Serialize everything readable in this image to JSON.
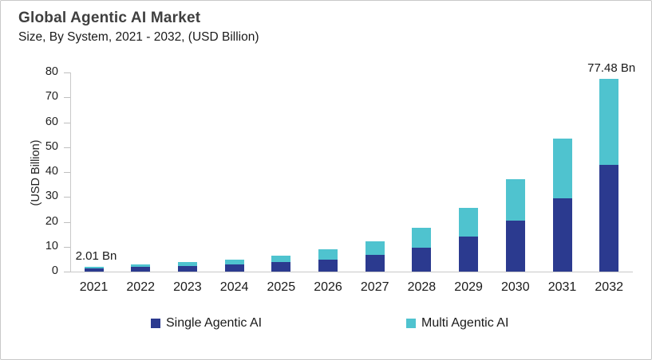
{
  "header": {
    "title": "Global Agentic AI Market",
    "subtitle": "Size, By System, 2021 - 2032, (USD Billion)"
  },
  "chart_data": {
    "type": "bar",
    "stacked": true,
    "title": "Global Agentic AI Market",
    "subtitle": "Size, By System, 2021 - 2032, (USD Billion)",
    "xlabel": "",
    "ylabel": "(USD Billion)",
    "ylim": [
      0,
      80
    ],
    "ytick_step": 10,
    "ytick_labels": [
      "0",
      "10",
      "20",
      "30",
      "40",
      "50",
      "60",
      "70",
      "80"
    ],
    "grid": false,
    "legend_position": "bottom",
    "categories": [
      "2021",
      "2022",
      "2023",
      "2024",
      "2025",
      "2026",
      "2027",
      "2028",
      "2029",
      "2030",
      "2031",
      "2032"
    ],
    "series": [
      {
        "name": "Single Agentic AI",
        "color": "#2B3A8F",
        "values": [
          1.3,
          1.8,
          2.4,
          2.9,
          3.8,
          4.9,
          6.6,
          9.7,
          14.0,
          20.5,
          29.5,
          42.9
        ]
      },
      {
        "name": "Multi Agentic AI",
        "color": "#4FC3CF",
        "values": [
          0.71,
          1.0,
          1.3,
          1.8,
          2.6,
          4.2,
          5.6,
          8.0,
          11.6,
          16.6,
          23.9,
          34.58
        ]
      }
    ],
    "stacked_totals": [
      2.01,
      2.8,
      3.7,
      4.7,
      6.4,
      9.1,
      12.2,
      17.7,
      25.6,
      37.1,
      53.4,
      77.48
    ],
    "annotations": [
      {
        "category": "2021",
        "text": "2.01 Bn"
      },
      {
        "category": "2032",
        "text": "77.48 Bn"
      }
    ]
  },
  "legend": {
    "items": [
      {
        "label": "Single Agentic AI",
        "color": "#2B3A8F"
      },
      {
        "label": "Multi Agentic AI",
        "color": "#4FC3CF"
      }
    ]
  },
  "colors": {
    "single_agentic": "#2B3A8F",
    "multi_agentic": "#4FC3CF",
    "axis": "#C9C9C9",
    "title_text": "#3F3F3F",
    "body_text": "#1A1A1A"
  }
}
